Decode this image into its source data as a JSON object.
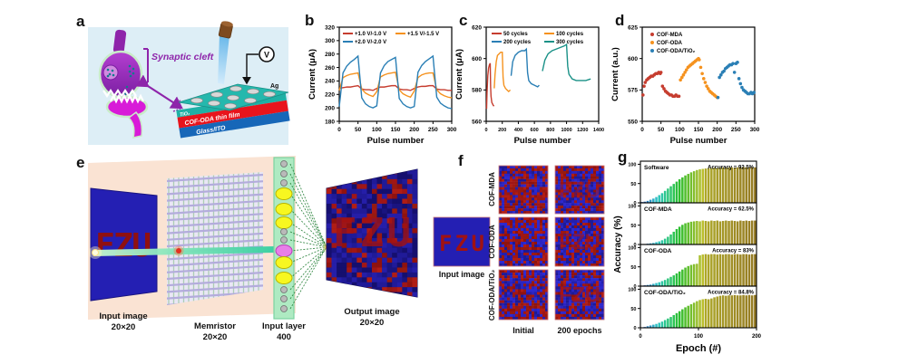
{
  "figure": {
    "panel_labels": {
      "a": "a",
      "b": "b",
      "c": "c",
      "d": "d",
      "e": "e",
      "f": "f",
      "g": "g"
    },
    "panel_a": {
      "synaptic_cleft": "Synaptic cleft",
      "electrode": "Ag",
      "voltmeter": "V",
      "layers": {
        "top": "TiO₂",
        "middle": "COF-ODA thin film",
        "bottom": "Glass/ITO"
      }
    },
    "panel_e": {
      "input_image": {
        "caption": "Input image",
        "size": "20×20"
      },
      "memristor": {
        "caption": "Memristor",
        "size": "20×20"
      },
      "input_layer": {
        "caption": "Input layer",
        "size": "400"
      },
      "output_image": {
        "caption": "Output image",
        "size": "20×20"
      },
      "letters": "FZU"
    },
    "panel_f": {
      "input_caption": "Input image",
      "row_labels": [
        "COF-MDA",
        "COF-ODA",
        "COF-ODA/TiO₂"
      ],
      "col_labels": [
        "Initial",
        "200 epochs"
      ],
      "letters": "FZU"
    }
  },
  "chart_data": [
    {
      "id": "b",
      "type": "line",
      "xlabel": "Pulse number",
      "ylabel": "Current (μA)",
      "xlim": [
        0,
        300
      ],
      "xticks": [
        0,
        50,
        100,
        150,
        200,
        250,
        300
      ],
      "ylim": [
        180,
        320
      ],
      "yticks": [
        180,
        200,
        220,
        240,
        260,
        280,
        300,
        320
      ],
      "legend_position": "top-inside",
      "x_start": 0,
      "x_step": 10,
      "series": [
        {
          "name": "+1.0 V/-1.0 V",
          "color": "#c63d2f",
          "values": [
            229,
            230,
            231,
            231,
            232,
            233,
            228,
            227,
            227,
            226,
            229,
            231,
            231,
            232,
            233,
            233,
            228,
            227,
            227,
            226,
            229,
            231,
            232,
            232,
            233,
            233,
            228,
            227,
            227,
            226,
            226
          ]
        },
        {
          "name": "+1.5 V/-1.5 V",
          "color": "#f5921e",
          "values": [
            226,
            245,
            248,
            250,
            251,
            252,
            228,
            222,
            219,
            217,
            224,
            246,
            249,
            251,
            252,
            253,
            227,
            221,
            218,
            216,
            225,
            245,
            249,
            251,
            252,
            252,
            227,
            221,
            218,
            216,
            215
          ]
        },
        {
          "name": "+2.0 V/-2.0 V",
          "color": "#2a7fb5",
          "values": [
            202,
            252,
            262,
            268,
            272,
            277,
            215,
            206,
            202,
            200,
            203,
            252,
            263,
            269,
            272,
            275,
            214,
            206,
            202,
            200,
            202,
            253,
            263,
            269,
            273,
            277,
            216,
            207,
            203,
            200,
            199
          ]
        }
      ]
    },
    {
      "id": "c",
      "type": "line",
      "xlabel": "Pulse number",
      "ylabel": "Current (μA)",
      "xlim": [
        0,
        1400
      ],
      "xticks": [
        0,
        200,
        400,
        600,
        800,
        1000,
        1200,
        1400
      ],
      "ylim": [
        560,
        620
      ],
      "yticks": [
        560,
        580,
        600,
        620
      ],
      "legend_position": "top-inside",
      "series": [
        {
          "name": "50 cycles",
          "color": "#c63d2f",
          "points": [
            [
              5,
              568
            ],
            [
              10,
              578
            ],
            [
              20,
              589
            ],
            [
              30,
              594
            ],
            [
              40,
              596
            ],
            [
              50,
              597
            ],
            [
              55,
              582
            ],
            [
              60,
              576
            ],
            [
              70,
              572
            ],
            [
              80,
              571
            ],
            [
              90,
              570
            ],
            [
              100,
              570
            ]
          ]
        },
        {
          "name": "100 cycles",
          "color": "#f5921e",
          "points": [
            [
              100,
              581
            ],
            [
              110,
              590
            ],
            [
              125,
              598
            ],
            [
              140,
              602
            ],
            [
              160,
              603
            ],
            [
              180,
              604
            ],
            [
              200,
              604
            ],
            [
              210,
              588
            ],
            [
              220,
              583
            ],
            [
              240,
              581
            ],
            [
              260,
              580
            ],
            [
              280,
              579
            ],
            [
              300,
              580
            ]
          ]
        },
        {
          "name": "200 cycles",
          "color": "#2a7fb5",
          "points": [
            [
              310,
              589
            ],
            [
              330,
              598
            ],
            [
              360,
              602
            ],
            [
              400,
              604
            ],
            [
              440,
              605
            ],
            [
              480,
              605
            ],
            [
              500,
              606
            ],
            [
              515,
              591
            ],
            [
              530,
              586
            ],
            [
              560,
              584
            ],
            [
              600,
              583
            ],
            [
              640,
              582
            ],
            [
              660,
              583
            ]
          ]
        },
        {
          "name": "300 cycles",
          "color": "#1a9187",
          "points": [
            [
              700,
              592
            ],
            [
              730,
              599
            ],
            [
              770,
              603
            ],
            [
              820,
              605
            ],
            [
              870,
              606
            ],
            [
              920,
              607
            ],
            [
              970,
              608
            ],
            [
              1000,
              609
            ],
            [
              1015,
              595
            ],
            [
              1030,
              590
            ],
            [
              1070,
              587
            ],
            [
              1120,
              586
            ],
            [
              1180,
              586
            ],
            [
              1240,
              586
            ],
            [
              1300,
              587
            ]
          ]
        }
      ]
    },
    {
      "id": "d",
      "type": "scatter",
      "xlabel": "Pulse number",
      "ylabel": "Current (a.u.)",
      "xlim": [
        0,
        300
      ],
      "xticks": [
        0,
        50,
        100,
        150,
        200,
        250,
        300
      ],
      "ylim": [
        550,
        625
      ],
      "yticks": [
        550,
        575,
        600,
        625
      ],
      "legend_position": "top-left-inside",
      "series": [
        {
          "name": "COF-MDA",
          "color": "#c63d2f",
          "points": [
            [
              2,
              571
            ],
            [
              5,
              578
            ],
            [
              8,
              581
            ],
            [
              12,
              583
            ],
            [
              16,
              584
            ],
            [
              20,
              585
            ],
            [
              24,
              586
            ],
            [
              28,
              586
            ],
            [
              32,
              587
            ],
            [
              36,
              588
            ],
            [
              40,
              588
            ],
            [
              44,
              589
            ],
            [
              48,
              588
            ],
            [
              50,
              589
            ],
            [
              54,
              578
            ],
            [
              58,
              576
            ],
            [
              62,
              574
            ],
            [
              66,
              573
            ],
            [
              70,
              572
            ],
            [
              74,
              571
            ],
            [
              78,
              571
            ],
            [
              82,
              570
            ],
            [
              86,
              570
            ],
            [
              90,
              571
            ],
            [
              94,
              570
            ],
            [
              98,
              570
            ]
          ]
        },
        {
          "name": "COF-ODA",
          "color": "#f5921e",
          "points": [
            [
              102,
              583
            ],
            [
              106,
              585
            ],
            [
              110,
              587
            ],
            [
              114,
              589
            ],
            [
              118,
              591
            ],
            [
              122,
              593
            ],
            [
              126,
              594
            ],
            [
              130,
              595
            ],
            [
              134,
              596
            ],
            [
              138,
              597
            ],
            [
              142,
              598
            ],
            [
              146,
              599
            ],
            [
              150,
              600
            ],
            [
              152,
              599
            ],
            [
              156,
              593
            ],
            [
              160,
              588
            ],
            [
              164,
              584
            ],
            [
              168,
              581
            ],
            [
              172,
              578
            ],
            [
              176,
              576
            ],
            [
              180,
              574
            ],
            [
              184,
              573
            ],
            [
              188,
              572
            ],
            [
              192,
              571
            ],
            [
              196,
              570
            ],
            [
              200,
              569
            ]
          ]
        },
        {
          "name": "COF-ODA/TiO₂",
          "color": "#2a7fb5",
          "points": [
            [
              202,
              569
            ],
            [
              206,
              585
            ],
            [
              210,
              587
            ],
            [
              214,
              589
            ],
            [
              218,
              590
            ],
            [
              222,
              592
            ],
            [
              226,
              593
            ],
            [
              230,
              594
            ],
            [
              234,
              595
            ],
            [
              238,
              595
            ],
            [
              242,
              596
            ],
            [
              246,
              589
            ],
            [
              250,
              596
            ],
            [
              254,
              597
            ],
            [
              258,
              584
            ],
            [
              262,
              580
            ],
            [
              266,
              577
            ],
            [
              270,
              575
            ],
            [
              274,
              574
            ],
            [
              278,
              573
            ],
            [
              282,
              572
            ],
            [
              286,
              572
            ],
            [
              290,
              573
            ],
            [
              294,
              572
            ],
            [
              298,
              573
            ]
          ]
        }
      ]
    },
    {
      "id": "g",
      "type": "bar-grid",
      "xlabel": "Epoch (#)",
      "ylabel": "Accuracy (%)",
      "xlim": [
        0,
        200
      ],
      "xticks": [
        0,
        100,
        200
      ],
      "yticks": [
        0,
        50,
        100
      ],
      "epoch_start": 5,
      "epoch_step": 5,
      "subplots": [
        {
          "name": "Software",
          "accuracy_label": "Accuracy = 92.5%",
          "values": [
            2,
            3,
            5,
            8,
            11,
            15,
            20,
            25,
            31,
            37,
            43,
            49,
            55,
            61,
            66,
            71,
            75,
            79,
            82,
            85,
            87,
            88,
            89,
            90,
            90,
            91,
            90,
            91,
            92,
            91,
            92,
            92,
            91,
            92,
            92,
            93,
            92,
            92,
            92,
            92
          ]
        },
        {
          "name": "COF-MDA",
          "accuracy_label": "Accuracy = 62.5%",
          "values": [
            1,
            1,
            2,
            3,
            4,
            6,
            8,
            11,
            15,
            20,
            26,
            33,
            40,
            46,
            51,
            55,
            57,
            59,
            60,
            61,
            60,
            62,
            61,
            60,
            62,
            61,
            62,
            60,
            61,
            62,
            61,
            62,
            61,
            60,
            62,
            61,
            62,
            61,
            62,
            62
          ]
        },
        {
          "name": "COF-ODA",
          "accuracy_label": "Accuracy = 83%",
          "values": [
            1,
            2,
            3,
            4,
            6,
            8,
            10,
            13,
            16,
            20,
            24,
            28,
            33,
            38,
            43,
            48,
            52,
            55,
            57,
            58,
            80,
            82,
            83,
            82,
            83,
            83,
            82,
            83,
            82,
            83,
            83,
            82,
            83,
            83,
            82,
            83,
            83,
            82,
            83,
            83
          ]
        },
        {
          "name": "COF-ODA/TiO₂",
          "accuracy_label": "Accuracy = 84.8%",
          "values": [
            1,
            2,
            4,
            6,
            8,
            10,
            13,
            16,
            20,
            24,
            28,
            33,
            38,
            43,
            48,
            53,
            57,
            61,
            65,
            69,
            72,
            74,
            75,
            74,
            76,
            79,
            81,
            83,
            84,
            83,
            84,
            84,
            85,
            84,
            84,
            85,
            84,
            85,
            84,
            85
          ]
        }
      ],
      "bar_color_sequence": [
        "#3a62b0",
        "#3fae4a",
        "#d8c832",
        "#8e7a1e"
      ]
    }
  ]
}
